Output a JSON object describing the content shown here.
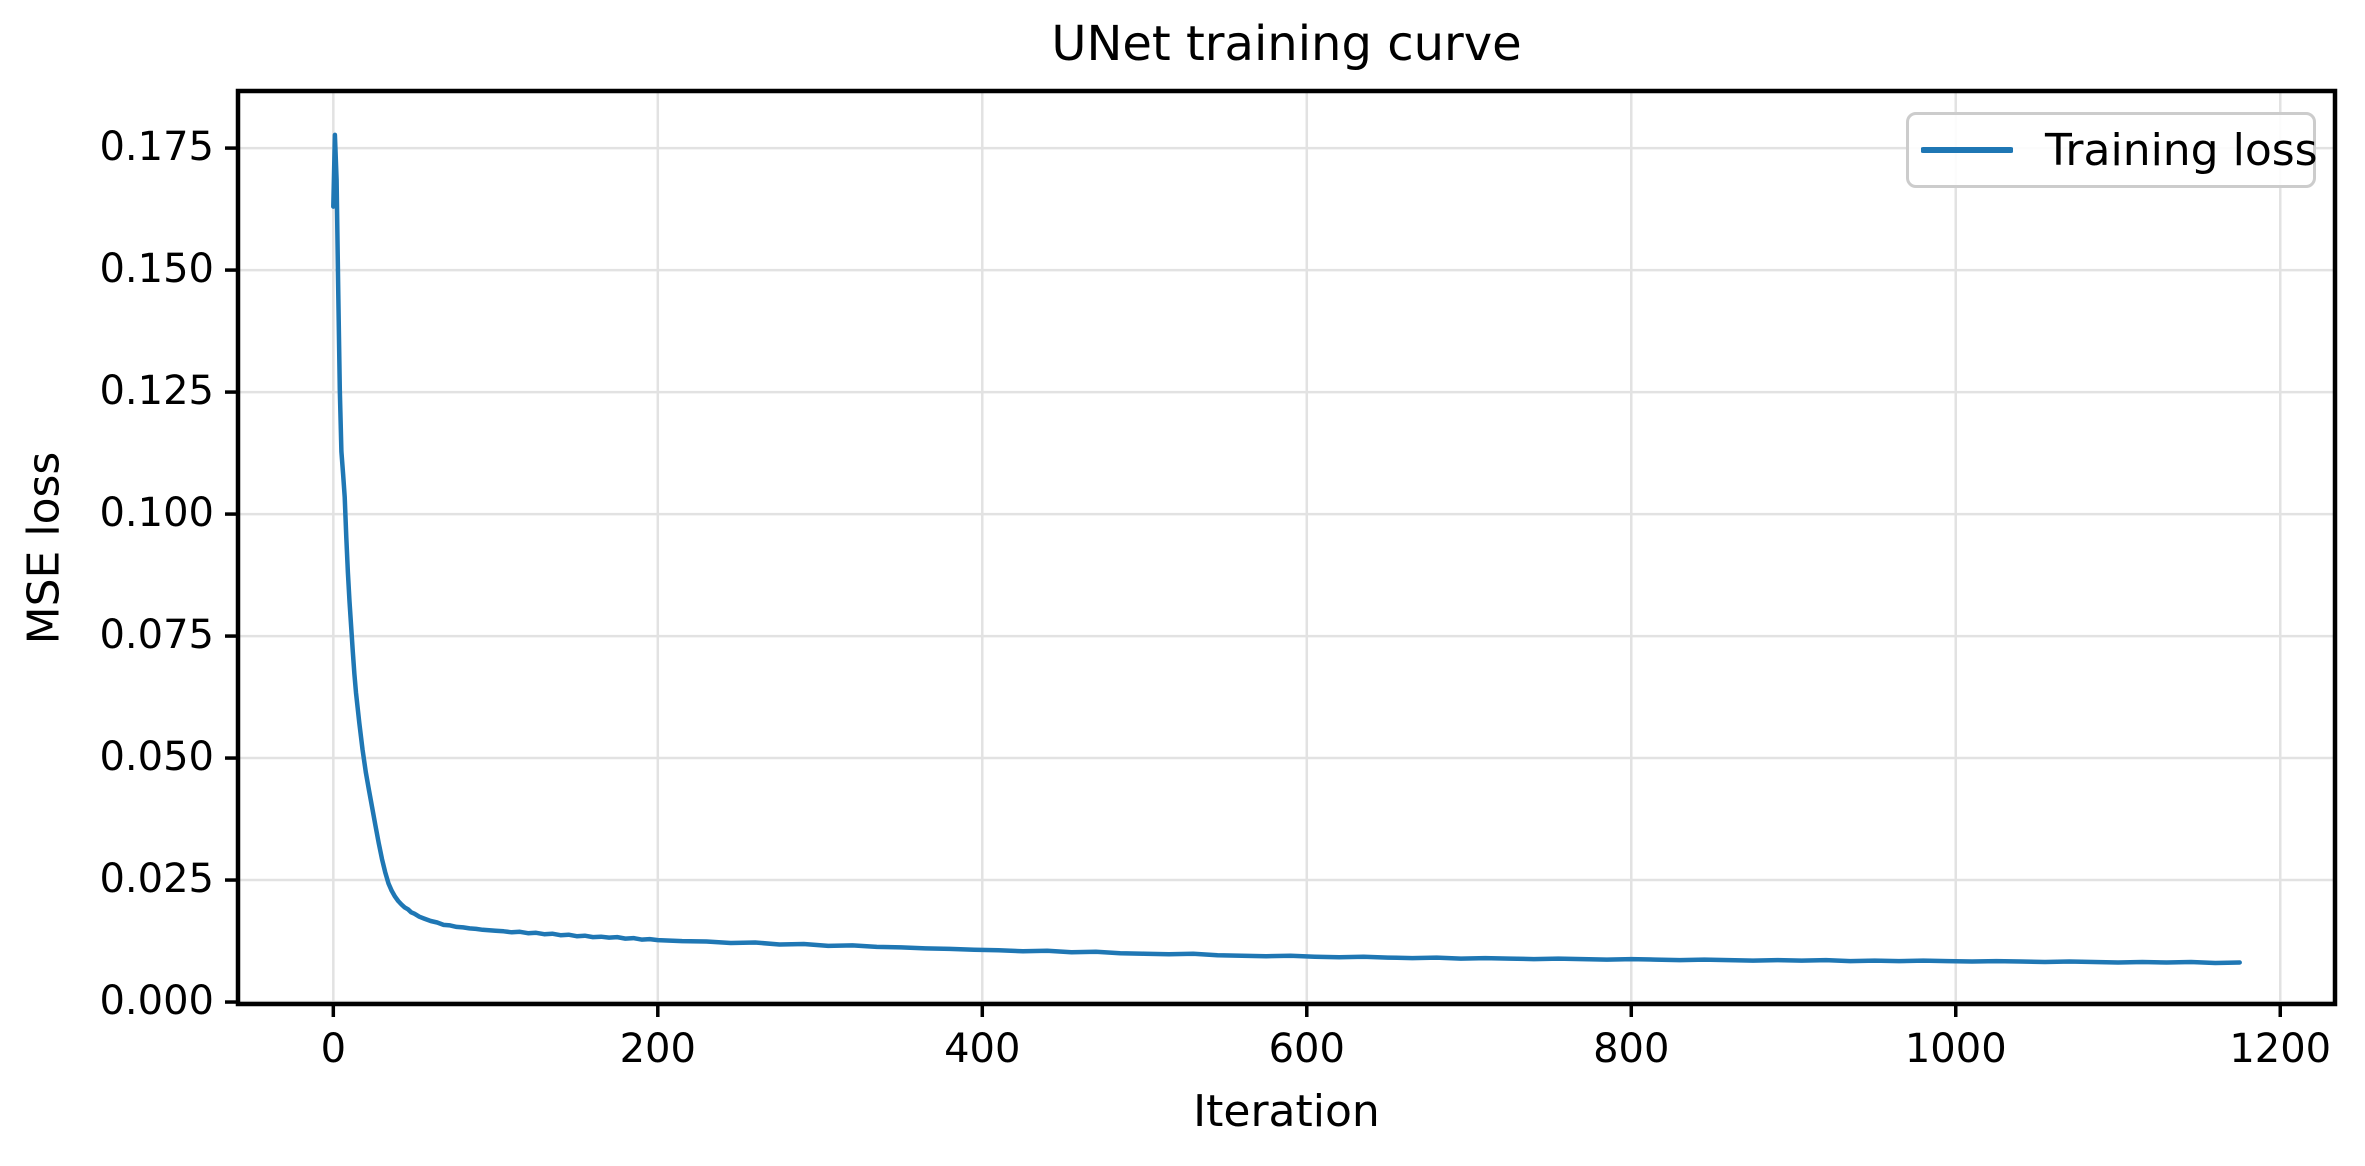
{
  "chart_data": {
    "type": "line",
    "title": "UNet training curve",
    "xlabel": "Iteration",
    "ylabel": "MSE loss",
    "grid": true,
    "legend_position": "upper right",
    "background_color": "#ffffff",
    "grid_color": "#e2e2e2",
    "spine_color": "#000000",
    "xlim": [
      -58.75,
      1233.75
    ],
    "ylim": [
      -0.0004,
      0.1867
    ],
    "xticks": [
      {
        "label": "0",
        "value": 0
      },
      {
        "label": "200",
        "value": 200
      },
      {
        "label": "400",
        "value": 400
      },
      {
        "label": "600",
        "value": 600
      },
      {
        "label": "800",
        "value": 800
      },
      {
        "label": "1000",
        "value": 1000
      },
      {
        "label": "1200",
        "value": 1200
      }
    ],
    "yticks": [
      {
        "label": "0.000",
        "value": 0.0
      },
      {
        "label": "0.025",
        "value": 0.025
      },
      {
        "label": "0.050",
        "value": 0.05
      },
      {
        "label": "0.075",
        "value": 0.075
      },
      {
        "label": "0.100",
        "value": 0.1
      },
      {
        "label": "0.125",
        "value": 0.125
      },
      {
        "label": "0.150",
        "value": 0.15
      },
      {
        "label": "0.175",
        "value": 0.175
      }
    ],
    "legend": {
      "entries": [
        {
          "label": "Training loss",
          "color": "#1f77b4"
        }
      ]
    },
    "series": [
      {
        "name": "Training loss",
        "color": "#1f77b4",
        "points": [
          [
            0,
            0.163
          ],
          [
            1,
            0.1777
          ],
          [
            2,
            0.1685
          ],
          [
            3,
            0.1462
          ],
          [
            4,
            0.1255
          ],
          [
            5,
            0.1128
          ],
          [
            6,
            0.1082
          ],
          [
            7,
            0.1035
          ],
          [
            8,
            0.0952
          ],
          [
            9,
            0.088
          ],
          [
            10,
            0.0821
          ],
          [
            11,
            0.0768
          ],
          [
            12,
            0.0718
          ],
          [
            13,
            0.0672
          ],
          [
            14,
            0.0634
          ],
          [
            16,
            0.0572
          ],
          [
            18,
            0.0518
          ],
          [
            20,
            0.0471
          ],
          [
            22,
            0.0434
          ],
          [
            24,
            0.0397
          ],
          [
            26,
            0.0361
          ],
          [
            28,
            0.0326
          ],
          [
            30,
            0.0293
          ],
          [
            32,
            0.0266
          ],
          [
            34,
            0.0243
          ],
          [
            36,
            0.0228
          ],
          [
            38,
            0.0216
          ],
          [
            40,
            0.0207
          ],
          [
            42,
            0.02
          ],
          [
            44,
            0.0194
          ],
          [
            46,
            0.019
          ],
          [
            48,
            0.0184
          ],
          [
            50,
            0.0181
          ],
          [
            53,
            0.0175
          ],
          [
            56,
            0.0171
          ],
          [
            60,
            0.0166
          ],
          [
            64,
            0.0163
          ],
          [
            68,
            0.0158
          ],
          [
            72,
            0.0157
          ],
          [
            76,
            0.0154
          ],
          [
            80,
            0.0153
          ],
          [
            84,
            0.0151
          ],
          [
            88,
            0.015
          ],
          [
            92,
            0.0148
          ],
          [
            96,
            0.0147
          ],
          [
            100,
            0.0146
          ],
          [
            105,
            0.0145
          ],
          [
            110,
            0.0143
          ],
          [
            115,
            0.0144
          ],
          [
            120,
            0.0141
          ],
          [
            125,
            0.0142
          ],
          [
            130,
            0.0139
          ],
          [
            135,
            0.014
          ],
          [
            140,
            0.0137
          ],
          [
            145,
            0.0138
          ],
          [
            150,
            0.0135
          ],
          [
            155,
            0.0136
          ],
          [
            160,
            0.0133
          ],
          [
            165,
            0.0134
          ],
          [
            170,
            0.0132
          ],
          [
            175,
            0.0133
          ],
          [
            180,
            0.013
          ],
          [
            185,
            0.0131
          ],
          [
            190,
            0.0128
          ],
          [
            195,
            0.0129
          ],
          [
            200,
            0.0127
          ],
          [
            215,
            0.0125
          ],
          [
            230,
            0.0124
          ],
          [
            245,
            0.0121
          ],
          [
            260,
            0.0122
          ],
          [
            275,
            0.0118
          ],
          [
            290,
            0.0119
          ],
          [
            305,
            0.0115
          ],
          [
            320,
            0.0116
          ],
          [
            335,
            0.0113
          ],
          [
            350,
            0.0112
          ],
          [
            365,
            0.011
          ],
          [
            380,
            0.0109
          ],
          [
            395,
            0.0107
          ],
          [
            410,
            0.0106
          ],
          [
            425,
            0.0104
          ],
          [
            440,
            0.0105
          ],
          [
            455,
            0.0102
          ],
          [
            470,
            0.0103
          ],
          [
            485,
            0.01
          ],
          [
            500,
            0.0099
          ],
          [
            515,
            0.0098
          ],
          [
            530,
            0.0099
          ],
          [
            545,
            0.0096
          ],
          [
            560,
            0.0095
          ],
          [
            575,
            0.0094
          ],
          [
            590,
            0.0095
          ],
          [
            605,
            0.0093
          ],
          [
            620,
            0.0092
          ],
          [
            635,
            0.0093
          ],
          [
            650,
            0.0091
          ],
          [
            665,
            0.009
          ],
          [
            680,
            0.0091
          ],
          [
            695,
            0.0089
          ],
          [
            710,
            0.009
          ],
          [
            725,
            0.0089
          ],
          [
            740,
            0.0088
          ],
          [
            755,
            0.0089
          ],
          [
            770,
            0.0088
          ],
          [
            785,
            0.0087
          ],
          [
            800,
            0.0088
          ],
          [
            815,
            0.0087
          ],
          [
            830,
            0.0086
          ],
          [
            845,
            0.0087
          ],
          [
            860,
            0.0086
          ],
          [
            875,
            0.0085
          ],
          [
            890,
            0.0086
          ],
          [
            905,
            0.0085
          ],
          [
            920,
            0.0086
          ],
          [
            935,
            0.0084
          ],
          [
            950,
            0.0085
          ],
          [
            965,
            0.0084
          ],
          [
            980,
            0.0085
          ],
          [
            995,
            0.0084
          ],
          [
            1010,
            0.0083
          ],
          [
            1025,
            0.0084
          ],
          [
            1040,
            0.0083
          ],
          [
            1055,
            0.0082
          ],
          [
            1070,
            0.0083
          ],
          [
            1085,
            0.0082
          ],
          [
            1100,
            0.0081
          ],
          [
            1115,
            0.0082
          ],
          [
            1130,
            0.0081
          ],
          [
            1145,
            0.0082
          ],
          [
            1160,
            0.008
          ],
          [
            1175,
            0.0081
          ]
        ]
      }
    ]
  }
}
